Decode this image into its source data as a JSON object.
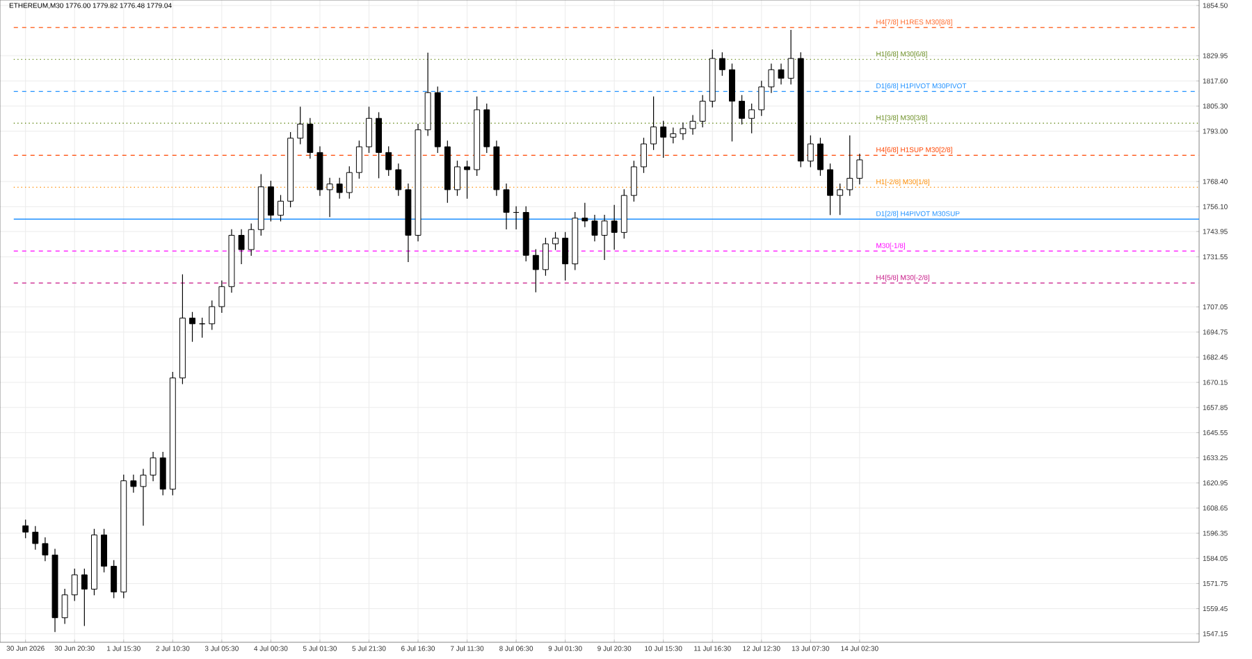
{
  "chart_data": {
    "type": "candlestick",
    "title": "ETHEREUM,M30  1776.00 1779.82 1776.48 1779.04",
    "color": "#000000",
    "grid": true,
    "categories": [
      "30 Jun 2026",
      null,
      null,
      null,
      null,
      "30 Jun 20:30",
      null,
      null,
      null,
      null,
      "1 Jul 15:30",
      null,
      null,
      null,
      null,
      "2 Jul 10:30",
      null,
      null,
      null,
      null,
      "3 Jul 05:30",
      null,
      null,
      null,
      null,
      "4 Jul 00:30",
      null,
      null,
      null,
      null,
      "5 Jul 01:30",
      null,
      null,
      null,
      null,
      "5 Jul 21:30",
      null,
      null,
      null,
      null,
      "6 Jul 16:30",
      null,
      null,
      null,
      null,
      "7 Jul 11:30",
      null,
      null,
      null,
      null,
      "8 Jul 06:30",
      null,
      null,
      null,
      null,
      "9 Jul 01:30",
      null,
      null,
      null,
      null,
      "9 Jul 20:30",
      null,
      null,
      null,
      null,
      "10 Jul 15:30",
      null,
      null,
      null,
      null,
      "11 Jul 16:30",
      null,
      null,
      null,
      null,
      "12 Jul 12:30",
      null,
      null,
      null,
      null,
      "13 Jul 07:30",
      null,
      null,
      null,
      null,
      "14 Jul 02:30",
      null,
      null,
      null,
      null,
      null,
      null,
      null,
      null,
      null,
      null,
      null,
      null,
      null,
      null,
      null,
      null,
      null,
      null,
      null,
      null,
      null,
      null,
      null,
      null,
      null,
      null,
      null,
      null,
      null,
      null,
      null,
      null,
      null,
      null
    ],
    "ohlc": [
      [
        1600.0,
        1603.0,
        1593.9,
        1596.9
      ],
      [
        1596.9,
        1599.9,
        1588.3,
        1591.3
      ],
      [
        1591.3,
        1594.3,
        1582.7,
        1585.7
      ],
      [
        1585.7,
        1588.7,
        1548.0,
        1555.0
      ],
      [
        1555.0,
        1569.2,
        1552.0,
        1566.2
      ],
      [
        1566.2,
        1579.0,
        1563.2,
        1576.0
      ],
      [
        1576.0,
        1579.0,
        1551.0,
        1569.0
      ],
      [
        1569.0,
        1598.5,
        1566.0,
        1595.5
      ],
      [
        1595.5,
        1598.5,
        1577.2,
        1580.2
      ],
      [
        1580.2,
        1583.2,
        1564.6,
        1567.6
      ],
      [
        1567.6,
        1625.0,
        1564.6,
        1622.0
      ],
      [
        1622.0,
        1625.0,
        1616.2,
        1619.2
      ],
      [
        1619.2,
        1627.8,
        1600.0,
        1624.8
      ],
      [
        1624.8,
        1636.2,
        1621.8,
        1633.2
      ],
      [
        1633.2,
        1636.2,
        1614.9,
        1617.9
      ],
      [
        1617.9,
        1675.3,
        1614.9,
        1672.3
      ],
      [
        1672.3,
        1723.0,
        1669.3,
        1701.6
      ],
      [
        1701.6,
        1704.6,
        1690.0,
        1698.8
      ],
      [
        1698.8,
        1701.8,
        1692.0,
        1698.8
      ],
      [
        1698.8,
        1710.2,
        1695.8,
        1707.2
      ],
      [
        1707.2,
        1720.0,
        1704.2,
        1717.0
      ],
      [
        1717.0,
        1745.1,
        1714.0,
        1742.1
      ],
      [
        1742.1,
        1745.1,
        1728.0,
        1735.1
      ],
      [
        1735.1,
        1747.9,
        1732.1,
        1744.9
      ],
      [
        1744.9,
        1772.0,
        1741.9,
        1765.8
      ],
      [
        1765.8,
        1768.8,
        1748.9,
        1751.9
      ],
      [
        1751.9,
        1761.8,
        1748.9,
        1758.8
      ],
      [
        1758.8,
        1792.6,
        1755.8,
        1789.6
      ],
      [
        1789.6,
        1805.0,
        1786.6,
        1796.5
      ],
      [
        1796.5,
        1799.5,
        1779.6,
        1782.6
      ],
      [
        1782.6,
        1785.6,
        1761.4,
        1764.4
      ],
      [
        1764.4,
        1770.2,
        1751.0,
        1767.2
      ],
      [
        1767.2,
        1770.2,
        1760.0,
        1763.0
      ],
      [
        1763.0,
        1775.8,
        1760.0,
        1772.8
      ],
      [
        1772.8,
        1788.4,
        1769.8,
        1785.4
      ],
      [
        1785.4,
        1805.0,
        1782.4,
        1799.3
      ],
      [
        1799.3,
        1802.3,
        1770.0,
        1782.6
      ],
      [
        1782.6,
        1785.6,
        1771.2,
        1774.2
      ],
      [
        1774.2,
        1777.2,
        1761.4,
        1764.4
      ],
      [
        1764.4,
        1767.4,
        1729.0,
        1742.1
      ],
      [
        1742.1,
        1796.7,
        1739.1,
        1793.7
      ],
      [
        1793.7,
        1831.4,
        1790.7,
        1811.9
      ],
      [
        1811.9,
        1814.9,
        1782.4,
        1785.4
      ],
      [
        1785.4,
        1788.4,
        1758.0,
        1764.4
      ],
      [
        1764.4,
        1778.6,
        1761.4,
        1775.6
      ],
      [
        1775.6,
        1778.6,
        1760.0,
        1774.2
      ],
      [
        1774.2,
        1810.0,
        1771.2,
        1803.5
      ],
      [
        1803.5,
        1806.5,
        1782.4,
        1785.4
      ],
      [
        1785.4,
        1788.4,
        1761.4,
        1764.4
      ],
      [
        1764.4,
        1767.4,
        1745.0,
        1753.3
      ],
      [
        1753.3,
        1756.3,
        1745.0,
        1753.3
      ],
      [
        1753.3,
        1756.3,
        1729.3,
        1732.3
      ],
      [
        1732.3,
        1735.3,
        1714.2,
        1725.3
      ],
      [
        1725.3,
        1740.9,
        1722.3,
        1737.9
      ],
      [
        1737.9,
        1743.7,
        1734.9,
        1740.7
      ],
      [
        1740.7,
        1743.7,
        1720.0,
        1728.1
      ],
      [
        1728.1,
        1753.5,
        1725.1,
        1750.5
      ],
      [
        1750.5,
        1758.0,
        1746.1,
        1749.1
      ],
      [
        1749.1,
        1752.1,
        1739.1,
        1742.1
      ],
      [
        1742.1,
        1752.1,
        1730.0,
        1749.1
      ],
      [
        1749.1,
        1757.0,
        1735.0,
        1743.5
      ],
      [
        1743.5,
        1764.6,
        1740.5,
        1761.6
      ],
      [
        1761.6,
        1778.6,
        1758.6,
        1775.6
      ],
      [
        1775.6,
        1789.8,
        1772.6,
        1786.8
      ],
      [
        1786.8,
        1810.0,
        1783.8,
        1795.1
      ],
      [
        1795.1,
        1798.1,
        1780.0,
        1790.1
      ],
      [
        1790.1,
        1794.8,
        1787.1,
        1791.8
      ],
      [
        1791.8,
        1797.3,
        1788.8,
        1794.3
      ],
      [
        1794.3,
        1800.9,
        1791.3,
        1797.9
      ],
      [
        1797.9,
        1810.7,
        1794.9,
        1807.7
      ],
      [
        1807.7,
        1833.0,
        1804.7,
        1828.6
      ],
      [
        1828.6,
        1831.6,
        1820.1,
        1823.1
      ],
      [
        1823.1,
        1826.1,
        1788.0,
        1807.7
      ],
      [
        1807.7,
        1810.7,
        1796.3,
        1799.3
      ],
      [
        1799.3,
        1806.5,
        1792.0,
        1803.5
      ],
      [
        1803.5,
        1817.7,
        1800.5,
        1814.7
      ],
      [
        1814.7,
        1826.1,
        1811.7,
        1823.1
      ],
      [
        1823.1,
        1826.1,
        1815.9,
        1818.9
      ],
      [
        1818.9,
        1842.6,
        1815.9,
        1828.6
      ],
      [
        1828.6,
        1831.6,
        1775.4,
        1778.4
      ],
      [
        1778.4,
        1791.0,
        1775.4,
        1786.8
      ],
      [
        1786.8,
        1789.8,
        1771.2,
        1774.2
      ],
      [
        1774.2,
        1777.2,
        1752.0,
        1761.6
      ],
      [
        1761.6,
        1767.4,
        1752.0,
        1764.4
      ],
      [
        1764.4,
        1791.0,
        1761.4,
        1770.0
      ],
      [
        1770.0,
        1782.0,
        1767.0,
        1779.0
      ],
      null,
      null,
      null,
      null,
      null,
      null,
      null,
      null,
      null,
      null,
      null,
      null,
      null,
      null,
      null,
      null,
      null,
      null,
      null,
      null,
      null,
      null,
      null,
      null,
      null,
      null,
      null,
      null,
      null,
      null,
      null,
      null,
      null,
      null
    ],
    "ylim": [
      1543.0,
      1857.2
    ],
    "yticks": [
      {
        "value": 1547.15,
        "label": "1547.15"
      },
      {
        "value": 1559.45,
        "label": "1559.45"
      },
      {
        "value": 1571.75,
        "label": "1571.75"
      },
      {
        "value": 1584.05,
        "label": "1584.05"
      },
      {
        "value": 1596.35,
        "label": "1596.35"
      },
      {
        "value": 1608.65,
        "label": "1608.65"
      },
      {
        "value": 1620.95,
        "label": "1620.95"
      },
      {
        "value": 1633.25,
        "label": "1633.25"
      },
      {
        "value": 1645.55,
        "label": "1645.55"
      },
      {
        "value": 1657.85,
        "label": "1657.85"
      },
      {
        "value": 1670.15,
        "label": "1670.15"
      },
      {
        "value": 1682.45,
        "label": "1682.45"
      },
      {
        "value": 1694.75,
        "label": "1694.75"
      },
      {
        "value": 1707.05,
        "label": "1707.05"
      },
      {
        "value": 1731.55,
        "label": "1731.55"
      },
      {
        "value": 1743.95,
        "label": "1743.95"
      },
      {
        "value": 1756.1,
        "label": "1756.10"
      },
      {
        "value": 1768.4,
        "label": "1768.40"
      },
      {
        "value": 1793.0,
        "label": "1793.00"
      },
      {
        "value": 1805.3,
        "label": "1805.30"
      },
      {
        "value": 1817.6,
        "label": "1817.60"
      },
      {
        "value": 1829.95,
        "label": "1829.95"
      },
      {
        "value": 1854.5,
        "label": "1854.50"
      }
    ],
    "ref_lines": [
      {
        "axis": "y",
        "value": 1843.75,
        "label": "H4[7/8] H1RES M30[8/8]",
        "color": "#ff6a2b",
        "line_style": "dashed"
      },
      {
        "axis": "y",
        "value": 1828.1,
        "label": "H1[6/8] M30[6/8]",
        "color": "#6b8e23",
        "line_style": "dotted"
      },
      {
        "axis": "y",
        "value": 1812.5,
        "label": "D1[6/8] H1PIVOT M30PIVOT",
        "color": "#1e90ff",
        "line_style": "dashed"
      },
      {
        "axis": "y",
        "value": 1796.9,
        "label": "H1[3/8] M30[3/8]",
        "color": "#6b8e23",
        "line_style": "dotted"
      },
      {
        "axis": "y",
        "value": 1781.25,
        "label": "H4[6/8] H1SUP M30[2/8]",
        "color": "#ff4500",
        "line_style": "dashed"
      },
      {
        "axis": "y",
        "value": 1765.6,
        "label": "H1[-2/8] M30[1/8]",
        "color": "#ff8c00",
        "line_style": "dotted"
      },
      {
        "axis": "y",
        "value": 1750.0,
        "label": "D1[2/8] H4PIVOT M30SUP",
        "color": "#1e90ff",
        "line_style": "solid"
      },
      {
        "axis": "y",
        "value": 1734.4,
        "label": "M30[-1/8]",
        "color": "#ff00ff",
        "line_style": "dashed"
      },
      {
        "axis": "y",
        "value": 1718.75,
        "label": "H4[5/8] M30[-2/8]",
        "color": "#c71585",
        "line_style": "dashed"
      }
    ]
  }
}
